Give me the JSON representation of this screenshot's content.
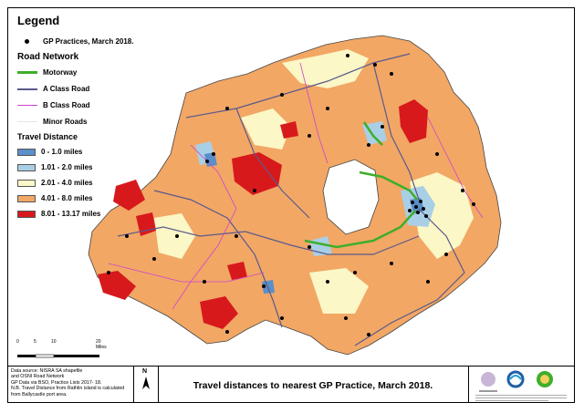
{
  "legend": {
    "title": "Legend",
    "gp_practices_label": "GP Practices, March 2018.",
    "road_network_title": "Road Network",
    "roads": [
      {
        "label": "Motorway",
        "color": "#3fae2a",
        "width": 3
      },
      {
        "label": "A Class Road",
        "color": "#5a5a8c",
        "width": 2
      },
      {
        "label": "B Class Road",
        "color": "#cc44cc",
        "width": 1
      },
      {
        "label": "Minor Roads",
        "color": "#e6e6e6",
        "width": 1
      }
    ],
    "travel_distance_title": "Travel Distance",
    "bands": [
      {
        "label": "0 - 1.0 miles",
        "color": "#5b8fc9"
      },
      {
        "label": "1.01 - 2.0 miles",
        "color": "#a9cfe6"
      },
      {
        "label": "2.01 - 4.0 miles",
        "color": "#fbf7c6"
      },
      {
        "label": "4.01 - 8.0 miles",
        "color": "#f2a765"
      },
      {
        "label": "8.01 - 13.17 miles",
        "color": "#d7191c"
      }
    ]
  },
  "scale_bar": {
    "labels": [
      "0",
      "5",
      "10",
      "20 Miles"
    ]
  },
  "north_arrow": "N",
  "source_notes": [
    "Data source: NISRA SA shapefile",
    "and OSNI Road Network",
    "GP Data via BSO, Practice Lists 2017- 18.",
    "N.B. Travel Distance from Rathlin island is calculated",
    "from Ballycastle port area."
  ],
  "map_title": "Travel distances to nearest GP Practice, March 2018.",
  "colors": {
    "lake": "#ffffff",
    "outline": "#444444",
    "gp_dot": "#000000"
  }
}
